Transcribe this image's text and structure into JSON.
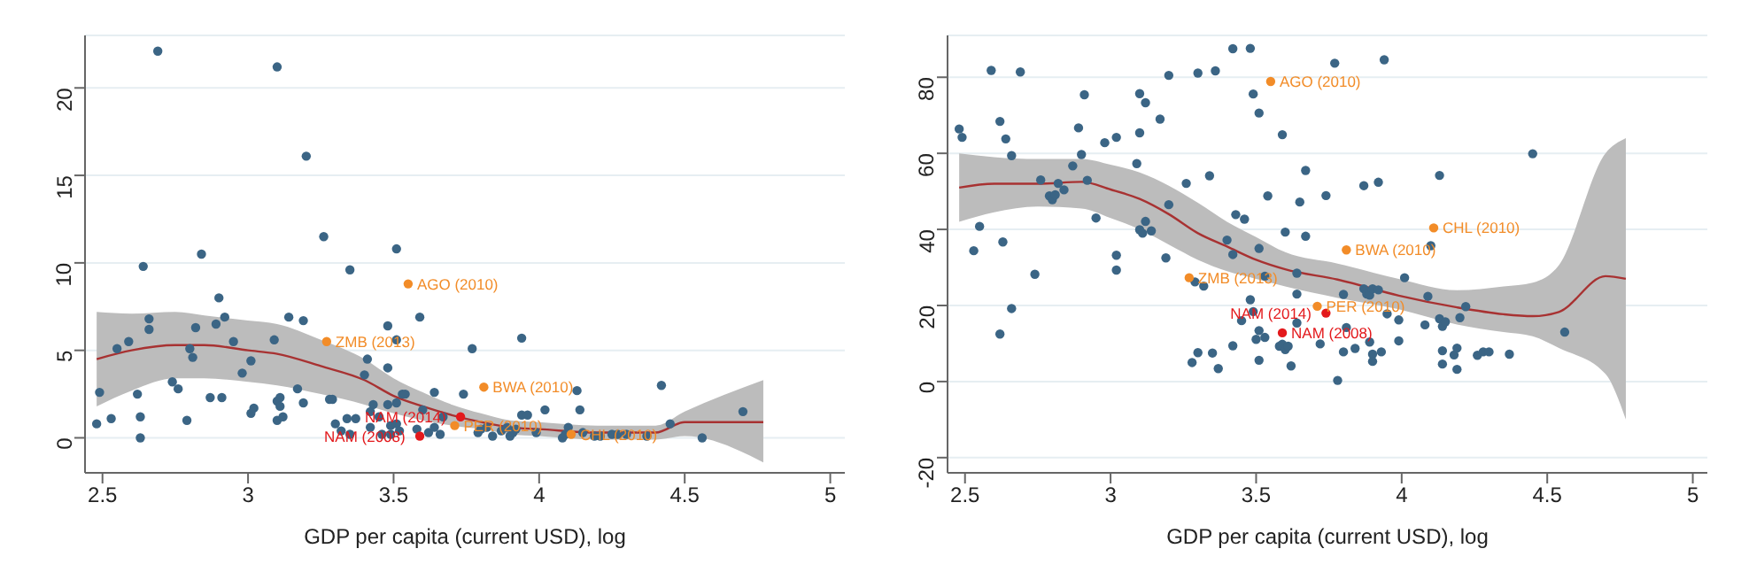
{
  "chart_data": [
    {
      "type": "scatter",
      "xlabel": "GDP per capita (current USD), log",
      "xlim": [
        2.44,
        5.05
      ],
      "xticks": [
        2.5,
        3,
        3.5,
        4,
        4.5,
        5
      ],
      "ylim": [
        -2,
        23
      ],
      "yticks": [
        0,
        5,
        10,
        15,
        20
      ],
      "grid": "y",
      "marker": "circle",
      "legend": false,
      "series": [
        {
          "type": "line",
          "marker": "none",
          "color": "#a83232",
          "x": [
            2.48,
            2.6,
            2.75,
            2.85,
            3.0,
            3.1,
            3.25,
            3.4,
            3.5,
            3.6,
            3.7,
            3.8,
            3.9,
            4.0,
            4.2,
            4.4,
            4.5,
            4.77
          ],
          "values": [
            4.5,
            5.0,
            5.3,
            5.3,
            5.0,
            4.8,
            4.1,
            3.3,
            2.4,
            1.8,
            1.3,
            0.9,
            0.6,
            0.5,
            0.3,
            0.3,
            0.9,
            0.9
          ],
          "lower": [
            1.8,
            2.7,
            3.4,
            3.4,
            3.2,
            3.0,
            2.5,
            1.9,
            1.4,
            1.0,
            0.7,
            0.5,
            0.2,
            0.1,
            -0.1,
            -0.1,
            0.1,
            -1.4
          ],
          "upper": [
            7.2,
            7.1,
            7.2,
            7.0,
            6.7,
            6.5,
            5.6,
            4.5,
            3.4,
            2.6,
            1.9,
            1.4,
            1.0,
            0.9,
            0.7,
            0.7,
            1.5,
            3.3
          ]
        },
        {
          "color": "#3b6585",
          "x": [
            2.48,
            2.49,
            2.53,
            2.55,
            2.59,
            2.62,
            2.63,
            2.63,
            2.64,
            2.66,
            2.66,
            2.69,
            2.74,
            2.76,
            2.79,
            2.8,
            2.81,
            2.82,
            2.84,
            2.87,
            2.89,
            2.9,
            2.91,
            2.92,
            2.95,
            2.98,
            3.01,
            3.01,
            3.02,
            3.09,
            3.1,
            3.1,
            3.1,
            3.11,
            3.11,
            3.12,
            3.14,
            3.17,
            3.19,
            3.19,
            3.2,
            3.26,
            3.28,
            3.29,
            3.3,
            3.32,
            3.34,
            3.35,
            3.35,
            3.37,
            3.4,
            3.41,
            3.42,
            3.42,
            3.43,
            3.45,
            3.46,
            3.48,
            3.48,
            3.48,
            3.49,
            3.49,
            3.51,
            3.51,
            3.51,
            3.51,
            3.52,
            3.53,
            3.54,
            3.59,
            3.58,
            3.6,
            3.64,
            3.67,
            3.77,
            3.74,
            3.94,
            3.62,
            3.64,
            3.66,
            3.79,
            3.8,
            3.84,
            3.87,
            3.89,
            3.9,
            3.91,
            3.92,
            3.94,
            3.96,
            3.99,
            4.02,
            4.08,
            4.09,
            4.1,
            4.13,
            4.14,
            4.15,
            4.19,
            4.21,
            4.25,
            4.27,
            4.3,
            4.37,
            4.42,
            4.45,
            4.56,
            4.7,
            3.82
          ],
          "values": [
            0.8,
            2.6,
            1.1,
            5.1,
            5.5,
            2.5,
            1.2,
            0,
            9.8,
            6.2,
            6.8,
            22.1,
            3.2,
            2.8,
            1.0,
            5.1,
            4.6,
            6.3,
            10.5,
            2.3,
            6.5,
            8.0,
            2.3,
            6.9,
            5.5,
            3.7,
            4.4,
            1.4,
            1.7,
            5.6,
            2.1,
            1.0,
            21.2,
            2.3,
            1.8,
            1.2,
            6.9,
            2.8,
            6.7,
            2.0,
            16.1,
            11.5,
            2.2,
            2.2,
            0.8,
            0.4,
            1.1,
            9.6,
            0.2,
            1.1,
            3.6,
            4.5,
            1.5,
            0.6,
            1.9,
            1.2,
            0.2,
            6.4,
            4.0,
            1.9,
            0.7,
            0.2,
            0.8,
            10.8,
            5.6,
            2.0,
            0.4,
            2.5,
            2.5,
            6.9,
            0.5,
            1.6,
            2.6,
            1.2,
            5.1,
            2.5,
            5.7,
            0.3,
            0.6,
            0.2,
            0.3,
            0.5,
            0.1,
            0.4,
            0.6,
            0.1,
            0.3,
            0.5,
            1.3,
            1.3,
            0.3,
            1.6,
            0,
            0.2,
            0.6,
            2.7,
            1.6,
            0.3,
            0.1,
            0.1,
            0.2,
            0.2,
            0.2,
            0.1,
            3.0,
            0.8,
            0,
            1.5,
            0.6
          ]
        },
        {
          "color": "#f28c28",
          "x": [
            3.55,
            3.27,
            3.81,
            3.71,
            4.11
          ],
          "values": [
            8.8,
            5.5,
            2.9,
            0.7,
            0.2
          ]
        },
        {
          "color": "#e3191c",
          "x": [
            3.73,
            3.59
          ],
          "values": [
            1.2,
            0.1
          ]
        }
      ],
      "annotations": [
        {
          "text": "AGO (2010)",
          "x": 3.55,
          "y": 8.8
        },
        {
          "text": "ZMB (2013)",
          "x": 3.27,
          "y": 5.5
        },
        {
          "text": "BWA (2010)",
          "x": 3.81,
          "y": 2.9
        },
        {
          "text": "PER (2010)",
          "x": 3.71,
          "y": 0.7
        },
        {
          "text": "CHL (2010)",
          "x": 4.11,
          "y": 0.2
        },
        {
          "text": "NAM (2014)",
          "x": 3.73,
          "y": 1.2
        },
        {
          "text": "NAM (2008)",
          "x": 3.59,
          "y": 0.1
        }
      ]
    },
    {
      "type": "scatter",
      "xlabel": "GDP per capita (current USD), log",
      "xlim": [
        2.44,
        5.05
      ],
      "xticks": [
        2.5,
        3,
        3.5,
        4,
        4.5,
        5
      ],
      "ylim": [
        -24,
        91
      ],
      "yticks": [
        -20,
        0,
        20,
        40,
        60,
        80
      ],
      "grid": "y",
      "marker": "circle",
      "legend": false,
      "series": [
        {
          "type": "line",
          "marker": "none",
          "color": "#a83232",
          "x": [
            2.48,
            2.6,
            2.75,
            2.9,
            3.0,
            3.1,
            3.2,
            3.3,
            3.4,
            3.5,
            3.6,
            3.78,
            3.99,
            4.19,
            4.35,
            4.45,
            4.54,
            4.7,
            4.77
          ],
          "values": [
            51,
            52,
            52,
            52.5,
            50.5,
            48,
            44,
            39,
            35.5,
            32,
            29.5,
            26.8,
            22.6,
            19.5,
            17.7,
            17.2,
            18.3,
            27.7,
            27
          ],
          "lower": [
            42,
            44.5,
            46,
            45.5,
            43,
            40,
            36,
            32,
            29,
            27,
            25,
            22,
            19,
            15,
            13,
            11.9,
            8.8,
            2,
            -10
          ],
          "upper": [
            60,
            59,
            58.5,
            58.5,
            57,
            55,
            51.5,
            47,
            42,
            38,
            34,
            31,
            27,
            24,
            25,
            26,
            30.6,
            60,
            64
          ]
        },
        {
          "color": "#3b6585",
          "x": [
            2.48,
            2.49,
            2.53,
            2.55,
            2.59,
            2.62,
            2.62,
            2.63,
            2.64,
            2.66,
            2.66,
            2.69,
            2.74,
            2.76,
            2.79,
            2.8,
            2.81,
            2.82,
            2.84,
            2.87,
            2.89,
            2.9,
            2.91,
            2.92,
            2.95,
            2.98,
            3.02,
            3.02,
            3.02,
            3.09,
            3.1,
            3.1,
            3.1,
            3.11,
            3.12,
            3.12,
            3.14,
            3.17,
            3.19,
            3.2,
            3.2,
            3.26,
            3.28,
            3.29,
            3.3,
            3.3,
            3.32,
            3.34,
            3.35,
            3.36,
            3.37,
            3.4,
            3.42,
            3.42,
            3.42,
            3.43,
            3.45,
            3.46,
            3.48,
            3.48,
            3.49,
            3.49,
            3.5,
            3.51,
            3.51,
            3.51,
            3.51,
            3.53,
            3.53,
            3.54,
            3.58,
            3.59,
            3.59,
            3.6,
            3.6,
            3.61,
            3.62,
            3.64,
            3.64,
            3.64,
            3.65,
            3.67,
            3.67,
            3.77,
            3.94,
            3.74,
            3.87,
            3.92,
            3.8,
            3.87,
            3.88,
            3.89,
            3.9,
            3.92,
            3.95,
            3.99,
            4.01,
            4.09,
            4.1,
            4.08,
            4.13,
            4.13,
            4.14,
            4.15,
            4.2,
            4.22,
            4.45,
            4.56,
            3.81,
            3.8,
            3.84,
            3.89,
            3.9,
            3.9,
            3.93,
            3.99,
            3.72,
            3.78,
            4.14,
            4.14,
            4.18,
            4.19,
            4.19,
            4.26,
            4.28,
            4.3,
            4.37
          ],
          "values": [
            66.4,
            64.2,
            34.4,
            40.8,
            81.8,
            68.4,
            12.5,
            36.7,
            63.8,
            59.4,
            19.2,
            81.4,
            28.2,
            53.0,
            48.8,
            47.8,
            49.1,
            52.1,
            50.4,
            56.7,
            66.7,
            59.7,
            75.4,
            52.9,
            43.0,
            62.8,
            29.3,
            33.2,
            64.2,
            57.3,
            75.7,
            39.9,
            65.4,
            39.0,
            73.3,
            42.1,
            39.6,
            69.0,
            32.5,
            46.5,
            80.5,
            52.1,
            5.0,
            26.2,
            81.1,
            7.6,
            25.1,
            54.1,
            7.5,
            81.7,
            3.4,
            37.2,
            87.5,
            9.4,
            33.4,
            43.9,
            16.0,
            42.7,
            21.5,
            87.6,
            18.4,
            75.6,
            11.1,
            5.6,
            35.0,
            70.6,
            13.4,
            11.6,
            27.7,
            48.8,
            9.3,
            64.9,
            9.8,
            39.3,
            8.4,
            9.3,
            4.1,
            28.5,
            23.0,
            15.4,
            47.2,
            38.2,
            55.5,
            83.7,
            84.6,
            48.9,
            51.5,
            52.4,
            22.9,
            24.4,
            23.0,
            22.7,
            24.4,
            24.1,
            17.8,
            16.2,
            27.3,
            22.4,
            35.7,
            14.9,
            54.2,
            16.5,
            14.5,
            15.7,
            16.8,
            19.7,
            59.9,
            13.0,
            14.2,
            7.8,
            8.7,
            10.4,
            7.2,
            5.3,
            7.8,
            10.7,
            9.9,
            0.3,
            8.1,
            4.6,
            7.0,
            8.8,
            3.2,
            6.9,
            7.8,
            7.8,
            7.2
          ]
        },
        {
          "color": "#f28c28",
          "x": [
            3.55,
            3.27,
            3.81,
            3.71,
            4.11
          ],
          "values": [
            78.9,
            27.3,
            34.6,
            19.8,
            40.4
          ]
        },
        {
          "color": "#e3191c",
          "x": [
            3.74,
            3.59
          ],
          "values": [
            18.0,
            12.8
          ]
        }
      ],
      "annotations": [
        {
          "text": "AGO (2010)",
          "x": 3.55,
          "y": 78.9
        },
        {
          "text": "ZMB (2013)",
          "x": 3.27,
          "y": 27.3
        },
        {
          "text": "BWA (2010)",
          "x": 3.81,
          "y": 34.6
        },
        {
          "text": "PER (2010)",
          "x": 3.71,
          "y": 19.8
        },
        {
          "text": "CHL (2010)",
          "x": 4.11,
          "y": 40.4
        },
        {
          "text": "NAM (2014)",
          "x": 3.74,
          "y": 18.0
        },
        {
          "text": "NAM (2008)",
          "x": 3.59,
          "y": 12.8
        }
      ]
    }
  ]
}
